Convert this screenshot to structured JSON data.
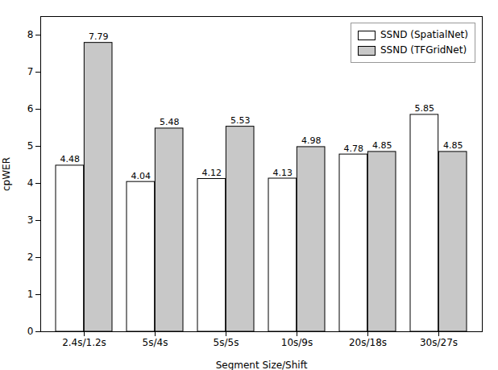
{
  "chart_data": {
    "type": "bar",
    "xlabel": "Segment Size/Shift",
    "ylabel": "cpWER",
    "categories": [
      "2.4s/1.2s",
      "5s/4s",
      "5s/5s",
      "10s/9s",
      "20s/18s",
      "30s/27s"
    ],
    "series": [
      {
        "name": "SSND (SpatialNet)",
        "color": "#ffffff",
        "values": [
          4.48,
          4.04,
          4.12,
          4.13,
          4.78,
          5.85
        ]
      },
      {
        "name": "SSND (TFGridNet)",
        "color": "#c8c8c8",
        "values": [
          7.79,
          5.48,
          5.53,
          4.98,
          4.85,
          4.85
        ]
      }
    ],
    "ylim": [
      0,
      8.5
    ],
    "yticks": [
      0,
      1,
      2,
      3,
      4,
      5,
      6,
      7,
      8
    ],
    "grid": false,
    "legend": "upper right",
    "data_labels": true
  }
}
